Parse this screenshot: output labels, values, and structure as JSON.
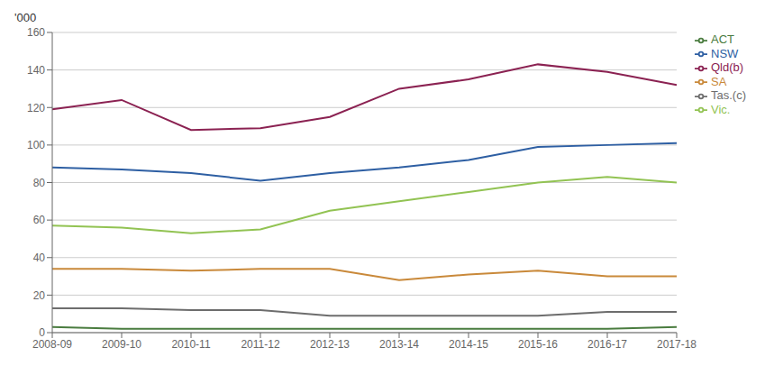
{
  "chart_data": {
    "type": "line",
    "categories": [
      "2008-09",
      "2009-10",
      "2010-11",
      "2011-12",
      "2012-13",
      "2013-14",
      "2014-15",
      "2015-16",
      "2016-17",
      "2017-18"
    ],
    "series": [
      {
        "name": "NSW",
        "color": "#2e5fa3",
        "values": [
          88,
          87,
          85,
          81,
          85,
          88,
          92,
          99,
          100,
          101
        ]
      },
      {
        "name": "Vic.",
        "color": "#92c353",
        "values": [
          57,
          56,
          53,
          55,
          65,
          70,
          75,
          80,
          83,
          80
        ]
      },
      {
        "name": "Qld(b)",
        "color": "#8b2252",
        "values": [
          119,
          124,
          108,
          109,
          115,
          130,
          135,
          143,
          139,
          132
        ]
      },
      {
        "name": "SA",
        "color": "#c9893a",
        "values": [
          34,
          34,
          33,
          34,
          34,
          28,
          31,
          33,
          30,
          30
        ]
      },
      {
        "name": "Tas.(c)",
        "color": "#6d6d6d",
        "values": [
          13,
          13,
          12,
          12,
          9,
          9,
          9,
          9,
          11,
          11
        ]
      },
      {
        "name": "ACT",
        "color": "#4a7c3f",
        "values": [
          3,
          2,
          2,
          2,
          2,
          2,
          2,
          2,
          2,
          3
        ]
      }
    ],
    "annotations": [
      "'000"
    ],
    "ylim": [
      0,
      160
    ],
    "yticks": [
      0,
      20,
      40,
      60,
      80,
      100,
      120,
      140,
      160
    ],
    "grid": true,
    "legend": "right"
  }
}
